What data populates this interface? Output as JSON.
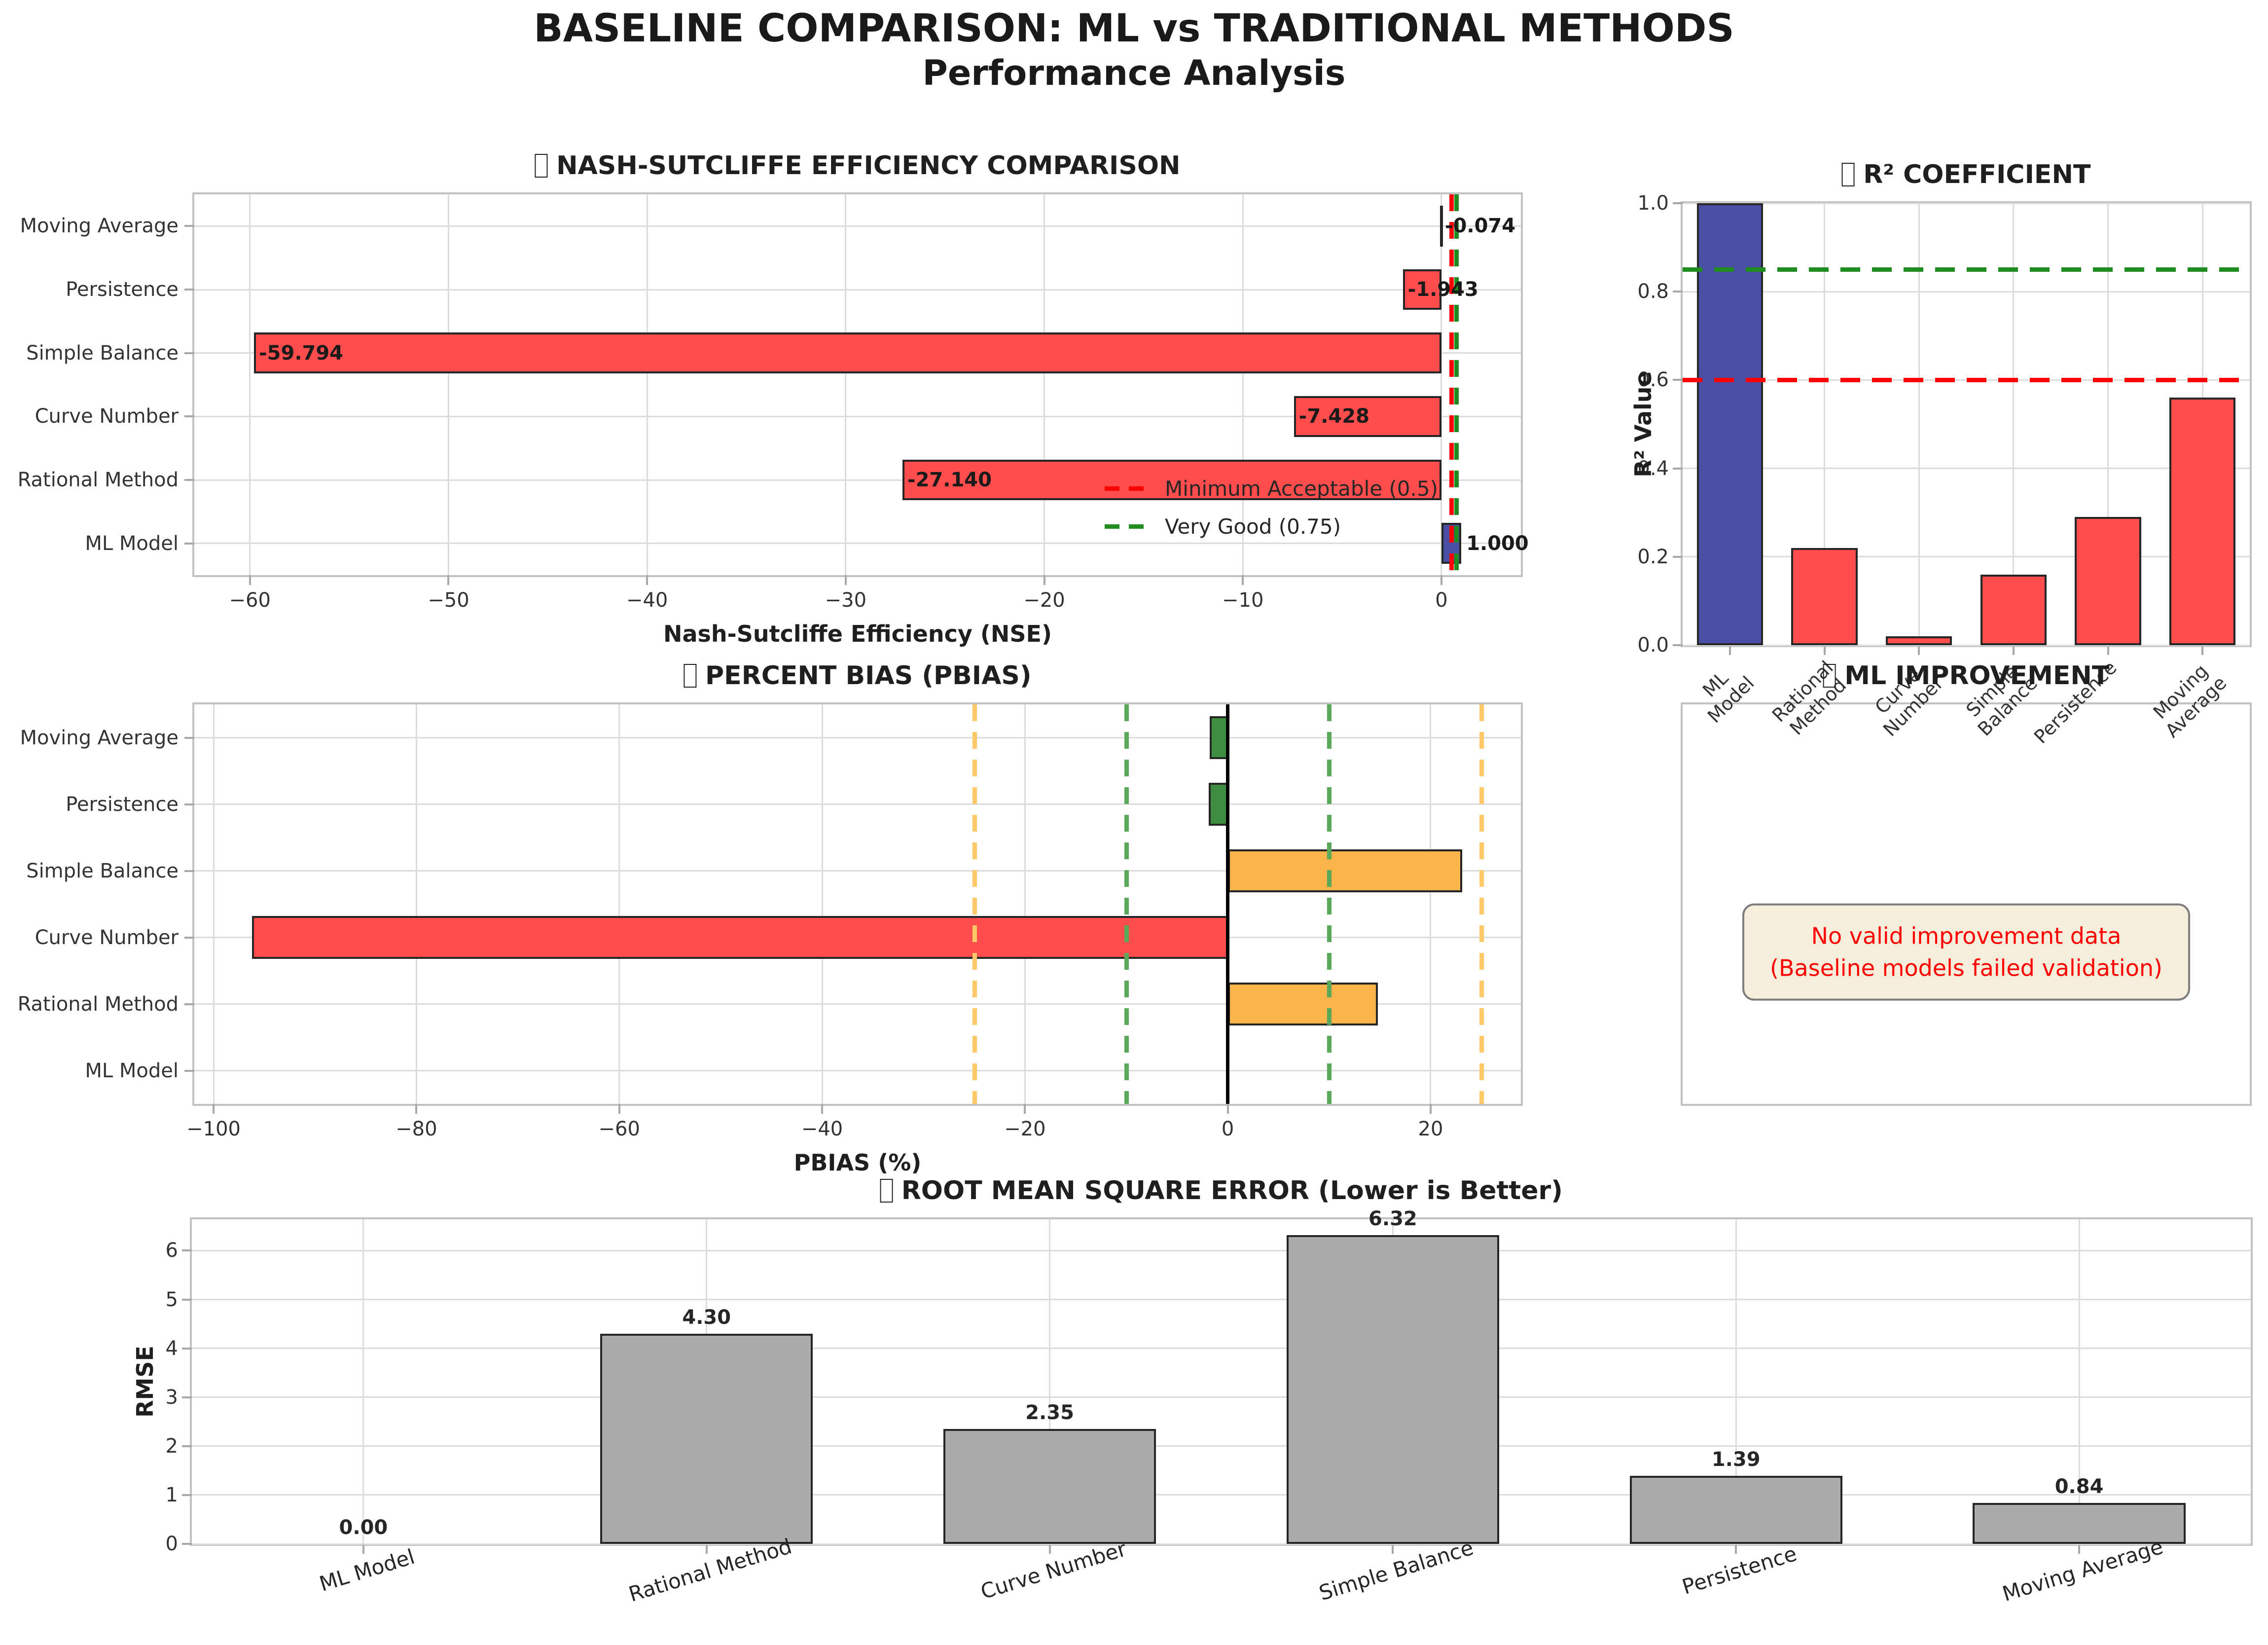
{
  "page": {
    "title_line1": "BASELINE COMPARISON: ML vs TRADITIONAL METHODS",
    "title_line2": "Performance Analysis"
  },
  "palette": {
    "ml_bar": "#4a4fa3",
    "baseline_bar_red": "#ff4d4d",
    "pbias_green": "#3e8e41",
    "pbias_orange": "#fbb449",
    "rmse_gray": "#ababab",
    "threshold_red": "#ff0000",
    "threshold_green": "#1e8c1e",
    "pbias_threshold_green": "#5aa85a",
    "pbias_threshold_orange": "#ffc868",
    "grid": "#dcdcdc",
    "spine": "#c2c2c2",
    "note_bg": "#f6edda",
    "note_border": "#7d7d7d",
    "note_text": "#fe0000"
  },
  "chart_data": [
    {
      "id": "nse",
      "type": "barh",
      "title": "NASH-SUTCLIFFE EFFICIENCY COMPARISON",
      "xlabel": "Nash-Sutcliffe Efficiency (NSE)",
      "categories": [
        "Moving Average",
        "Persistence",
        "Simple Balance",
        "Curve Number",
        "Rational Method",
        "ML Model"
      ],
      "values": [
        -0.074,
        -1.943,
        -59.794,
        -7.428,
        -27.14,
        1.0
      ],
      "labels": [
        "-0.074",
        "-1.943",
        "-59.794",
        "-7.428",
        "-27.140",
        "1.000"
      ],
      "colors": [
        "#ff4d4d",
        "#ff4d4d",
        "#ff4d4d",
        "#ff4d4d",
        "#ff4d4d",
        "#4a4fa3"
      ],
      "xlim": [
        -62.8,
        4.0
      ],
      "xticks": [
        -60,
        -50,
        -40,
        -30,
        -20,
        -10,
        0
      ],
      "xtick_labels": [
        "−60",
        "−50",
        "−40",
        "−30",
        "−20",
        "−10",
        "0"
      ],
      "vlines": [
        {
          "x": 0.5,
          "color": "#ff0000",
          "dash": true
        },
        {
          "x": 0.75,
          "color": "#1e8c1e",
          "dash": true
        }
      ],
      "legend": {
        "position": "lower right",
        "entries": [
          {
            "label": "Minimum Acceptable (0.5)",
            "color": "#ff0000"
          },
          {
            "label": "Very Good (0.75)",
            "color": "#1e8c1e"
          }
        ]
      }
    },
    {
      "id": "r2",
      "type": "bar",
      "title": "R² COEFFICIENT",
      "ylabel": "R² Value",
      "categories": [
        "ML\nModel",
        "Rational\nMethod",
        "Curve\nNumber",
        "Simple\nBalance",
        "Persistence",
        "Moving\nAverage"
      ],
      "values": [
        1.0,
        0.22,
        0.02,
        0.16,
        0.29,
        0.56
      ],
      "colors": [
        "#4a4fa3",
        "#ff4d4d",
        "#ff4d4d",
        "#ff4d4d",
        "#ff4d4d",
        "#ff4d4d"
      ],
      "ylim": [
        0,
        1.0
      ],
      "yticks": [
        0,
        0.2,
        0.4,
        0.6,
        0.8,
        1.0
      ],
      "ytick_labels": [
        "0.0",
        "0.2",
        "0.4",
        "0.6",
        "0.8",
        "1.0"
      ],
      "tick_rotation": 45,
      "bar_frac": 0.7,
      "hlines": [
        {
          "y": 0.85,
          "color": "#1e8c1e",
          "dash": true
        },
        {
          "y": 0.6,
          "color": "#ff0000",
          "dash": true
        }
      ]
    },
    {
      "id": "pbias",
      "type": "barh",
      "title": "PERCENT BIAS (PBIAS)",
      "xlabel": "PBIAS (%)",
      "categories": [
        "Moving Average",
        "Persistence",
        "Simple Balance",
        "Curve Number",
        "Rational Method",
        "ML Model"
      ],
      "values": [
        -1.8,
        -1.9,
        23.1,
        -96.2,
        14.8,
        0.0
      ],
      "colors": [
        "#3e8e41",
        "#3e8e41",
        "#fbb449",
        "#ff4d4d",
        "#fbb449",
        "#3e8e41"
      ],
      "xlim": [
        -101.9,
        28.9
      ],
      "xticks": [
        -100,
        -80,
        -60,
        -40,
        -20,
        0,
        20
      ],
      "xtick_labels": [
        "−100",
        "−80",
        "−60",
        "−40",
        "−20",
        "0",
        "20"
      ],
      "vlines": [
        {
          "x": 0,
          "color": "#000000",
          "dash": false
        },
        {
          "x": -10,
          "color": "#5aa85a",
          "dash": true
        },
        {
          "x": 10,
          "color": "#5aa85a",
          "dash": true
        },
        {
          "x": -25,
          "color": "#ffc868",
          "dash": true
        },
        {
          "x": 25,
          "color": "#ffc868",
          "dash": true
        }
      ]
    },
    {
      "id": "mlimp",
      "type": "empty",
      "title": "ML IMPROVEMENT",
      "note_line1": "No valid improvement data",
      "note_line2": "(Baseline models failed validation)"
    },
    {
      "id": "rmse",
      "type": "bar",
      "title": "ROOT MEAN SQUARE ERROR (Lower is Better)",
      "ylabel": "RMSE",
      "categories": [
        "ML Model",
        "Rational Method",
        "Curve Number",
        "Simple Balance",
        "Persistence",
        "Moving Average"
      ],
      "values": [
        0.0,
        4.3,
        2.35,
        6.32,
        1.39,
        0.84
      ],
      "labels": [
        "0.00",
        "4.30",
        "2.35",
        "6.32",
        "1.39",
        "0.84"
      ],
      "colors": [
        "#ababab",
        "#ababab",
        "#ababab",
        "#ababab",
        "#ababab",
        "#ababab"
      ],
      "ylim": [
        0,
        6.64
      ],
      "yticks": [
        0,
        1,
        2,
        3,
        4,
        5,
        6
      ],
      "ytick_labels": [
        "0",
        "1",
        "2",
        "3",
        "4",
        "5",
        "6"
      ],
      "tick_rotation": 17,
      "bar_frac": 0.62,
      "hlines": []
    }
  ]
}
